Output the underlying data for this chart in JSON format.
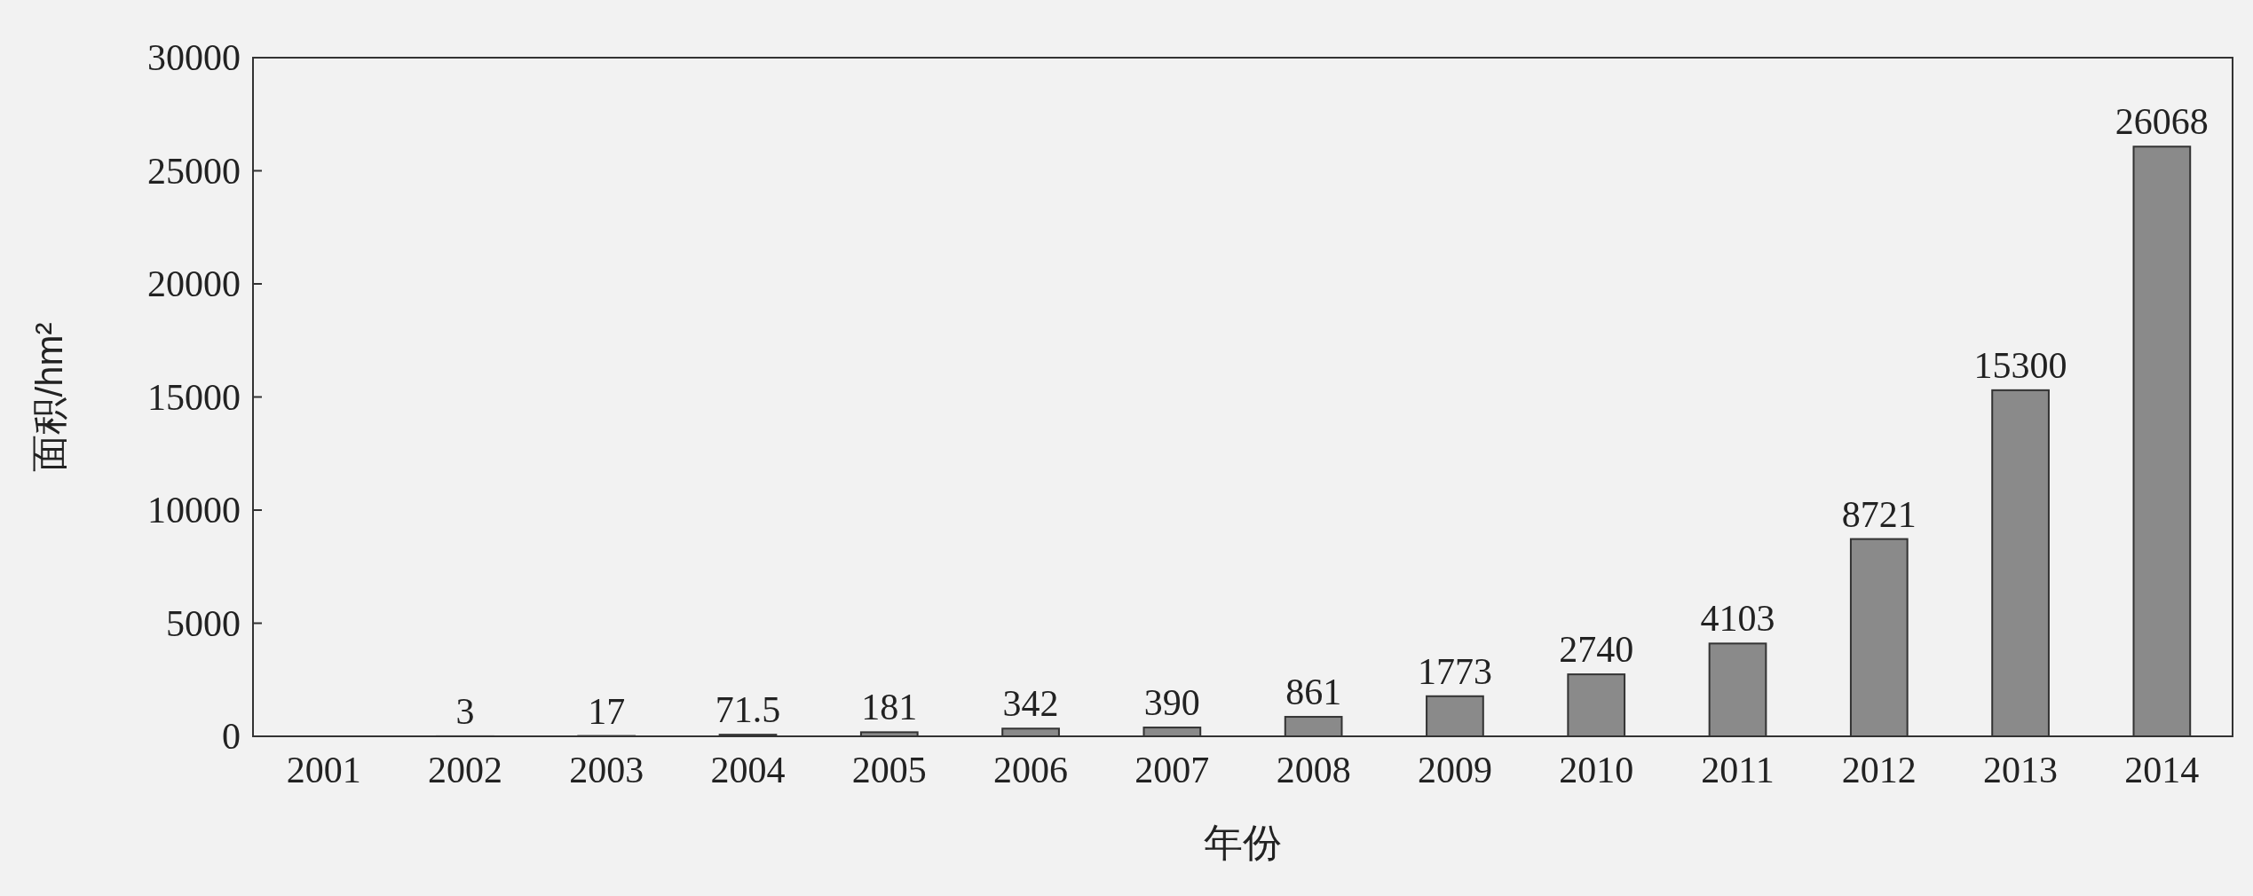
{
  "chart_data": {
    "type": "bar",
    "xlabel": "年份",
    "ylabel": "面积/hm²",
    "categories": [
      "2001",
      "2002",
      "2003",
      "2004",
      "2005",
      "2006",
      "2007",
      "2008",
      "2009",
      "2010",
      "2011",
      "2012",
      "2013",
      "2014"
    ],
    "values": [
      null,
      3,
      17,
      71.5,
      181,
      342,
      390,
      861,
      1773,
      2740,
      4103,
      8721,
      15300,
      26068
    ],
    "color": "#8a8a8a",
    "ylim": [
      0,
      30000
    ],
    "yticks": [
      0,
      5000,
      10000,
      15000,
      20000,
      25000,
      30000
    ],
    "data_labels": true,
    "grid": false
  }
}
